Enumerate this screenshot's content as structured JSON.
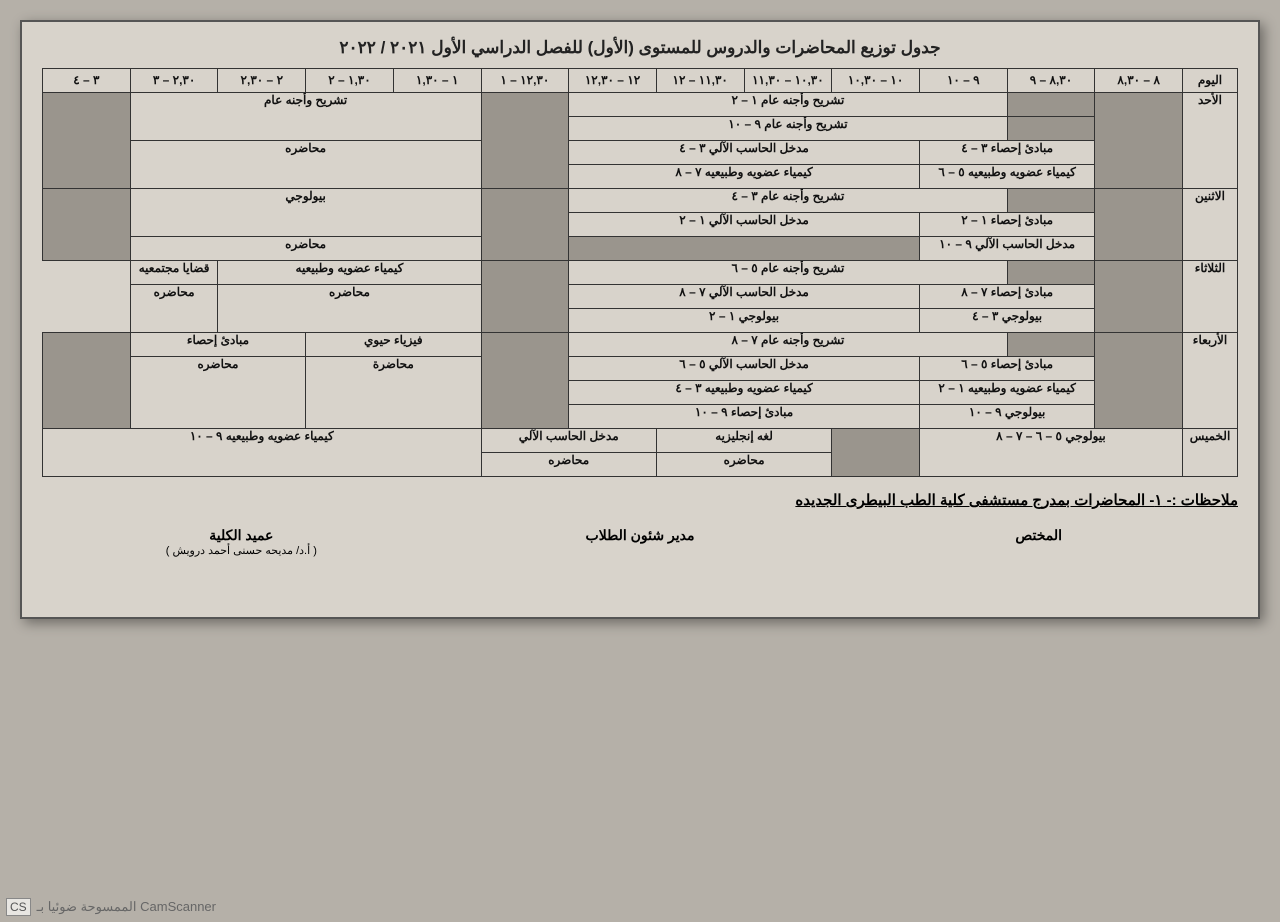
{
  "title": "جدول توزيع المحاضرات والدروس للمستوى (الأول) للفصل الدراسي الأول ٢٠٢١ / ٢٠٢٢",
  "header": {
    "day": "اليوم",
    "slots": [
      "٨ – ٨,٣٠",
      "٨,٣٠ – ٩",
      "٩ – ١٠",
      "١٠ – ١٠,٣٠",
      "١٠,٣٠ – ١١,٣٠",
      "١١,٣٠ – ١٢",
      "١٢ – ١٢,٣٠",
      "١٢,٣٠ – ١",
      "١ – ١,٣٠",
      "١,٣٠ – ٢",
      "٢ – ٢,٣٠",
      "٢,٣٠ – ٣",
      "٣ – ٤"
    ]
  },
  "days": {
    "sun": "الأحد",
    "mon": "الاثنين",
    "tue": "الثلاثاء",
    "wed": "الأربعاء",
    "thu": "الخميس"
  },
  "cells": {
    "sun_anat12": "تشريح وأجنه عام ١ – ٢",
    "sun_anat910": "تشريح وأجنه عام ٩ – ١٠",
    "sun_stats34": "مبادئ إحصاء ٣ – ٤",
    "sun_comp34": "مدخل الحاسب الآلي ٣ – ٤",
    "sun_chem56": "كيمياء عضويه وطبيعيه ٥ – ٦",
    "sun_chem78": "كيمياء عضويه وطبيعيه ٧ – ٨",
    "sun_lect_t": "تشريح وأجنه عام",
    "sun_lect_b": "محاضره",
    "mon_anat34": "تشريح وأجنه عام ٣ – ٤",
    "mon_stats12": "مبادئ إحصاء ١ – ٢",
    "mon_comp12": "مدخل الحاسب الآلي ١ – ٢",
    "mon_comp910": "مدخل الحاسب الآلي ٩ – ١٠",
    "mon_lect_t": "بيولوجي",
    "mon_lect_b": "محاضره",
    "tue_anat56": "تشريح وأجنه عام ٥ – ٦",
    "tue_stats78": "مبادئ إحصاء ٧ – ٨",
    "tue_comp78": "مدخل الحاسب الآلي ٧ – ٨",
    "tue_bio34": "بيولوجي ٣ – ٤",
    "tue_bio12": "بيولوجي ١ – ٢",
    "tue_lect_t": "كيمياء عضويه وطبيعيه",
    "tue_lect_b": "محاضره",
    "tue_right_t": "قضايا مجتمعيه",
    "tue_right_b": "محاضره",
    "wed_anat78": "تشريح وأجنه عام ٧ – ٨",
    "wed_stats56": "مبادئ إحصاء ٥ – ٦",
    "wed_comp56": "مدخل الحاسب الآلي ٥ – ٦",
    "wed_chem12": "كيمياء عضويه وطبيعيه ١ – ٢",
    "wed_chem34": "كيمياء عضويه وطبيعيه ٣ – ٤",
    "wed_bio910": "بيولوجي ٩ – ١٠",
    "wed_stats910": "مبادئ إحصاء ٩ – ١٠",
    "wed_phys_t": "فيزياء حيوي",
    "wed_phys_b": "محاضرة",
    "wed_stat_t": "مبادئ إحصاء",
    "wed_stat_b": "محاضره",
    "thu_bio5678": "بيولوجي ٥ – ٦ – ٧ – ٨",
    "thu_eng_t": "لغه إنجليزيه",
    "thu_eng_b": "محاضره",
    "thu_cmp_t": "مدخل الحاسب الآلي",
    "thu_cmp_b": "محاضره",
    "thu_chem910": "كيمياء عضويه وطبيعيه ٩ – ١٠"
  },
  "notes_label": "ملاحظات :-",
  "notes_text": "١- المحاضرات بمدرج مستشفى كلية الطب البيطرى الجديده",
  "sig_spec": "المختص",
  "sig_dir": "مدير شئون الطلاب",
  "sig_dean": "عميد الكلية",
  "sig_dean_sub": "( أ.د/ مديحه حسنى أحمد درويش )",
  "camscanner": "الممسوحة ضوئيا بـ CamScanner",
  "cs_badge": "CS"
}
